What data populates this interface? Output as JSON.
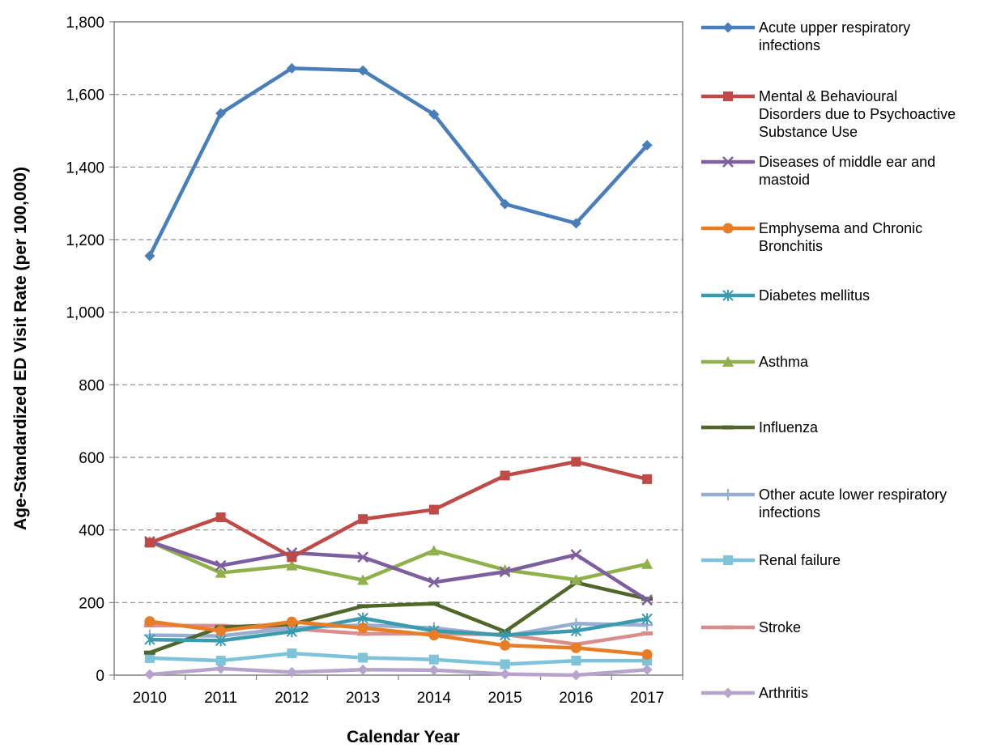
{
  "chart_data": {
    "type": "line",
    "title": "",
    "xlabel": "Calendar Year",
    "ylabel": "Age-Standardized ED Visit Rate (per 100,000)",
    "x": [
      "2010",
      "2011",
      "2012",
      "2013",
      "2014",
      "2015",
      "2016",
      "2017"
    ],
    "ylim": [
      0,
      1800
    ],
    "yticks": [
      "0",
      "200",
      "400",
      "600",
      "800",
      "1,000",
      "1,200",
      "1,400",
      "1,600",
      "1,800"
    ],
    "grid": "horizontal dashed",
    "legend_position": "right",
    "series": [
      {
        "name": "Acute upper respiratory infections",
        "legend_lines": [
          "Acute upper respiratory",
          "infections"
        ],
        "color": "#4A7EBB",
        "marker": "diamond",
        "values": [
          1155,
          1548,
          1672,
          1666,
          1545,
          1298,
          1245,
          1460
        ]
      },
      {
        "name": "Mental & Behavioural Disorders due to Psychoactive Substance Use",
        "legend_lines": [
          "Mental & Behavioural",
          "Disorders due to Psychoactive",
          "Substance Use"
        ],
        "color": "#BE4B48",
        "marker": "square",
        "values": [
          365,
          435,
          325,
          430,
          456,
          550,
          588,
          540
        ]
      },
      {
        "name": "Diseases of middle ear and mastoid",
        "legend_lines": [
          "Diseases of middle ear and",
          "mastoid"
        ],
        "color": "#7D5FA0",
        "marker": "x",
        "values": [
          368,
          302,
          337,
          325,
          256,
          285,
          332,
          207
        ]
      },
      {
        "name": "Emphysema and Chronic Bronchitis",
        "legend_lines": [
          "Emphysema and Chronic",
          "Bronchitis"
        ],
        "color": "#E77E27",
        "marker": "circle",
        "values": [
          148,
          122,
          147,
          130,
          110,
          82,
          75,
          57
        ]
      },
      {
        "name": "Diabetes mellitus",
        "legend_lines": [
          "Diabetes mellitus"
        ],
        "color": "#3A9AAE",
        "marker": "asterisk",
        "values": [
          98,
          95,
          120,
          157,
          122,
          110,
          122,
          155
        ]
      },
      {
        "name": "Asthma",
        "legend_lines": [
          "Asthma"
        ],
        "color": "#8FB04A",
        "marker": "triangle",
        "values": [
          368,
          282,
          302,
          262,
          343,
          290,
          263,
          306
        ]
      },
      {
        "name": "Influenza",
        "legend_lines": [
          "Influenza"
        ],
        "color": "#50662A",
        "marker": "dash",
        "values": [
          62,
          132,
          140,
          190,
          197,
          120,
          255,
          210
        ]
      },
      {
        "name": "Other acute lower respiratory infections",
        "legend_lines": [
          "Other acute lower respiratory",
          "infections"
        ],
        "color": "#97AED0",
        "marker": "plus",
        "values": [
          110,
          108,
          130,
          138,
          130,
          108,
          142,
          138
        ]
      },
      {
        "name": "Renal failure",
        "legend_lines": [
          "Renal failure"
        ],
        "color": "#7FC3DB",
        "marker": "square",
        "values": [
          47,
          40,
          60,
          48,
          43,
          30,
          40,
          40
        ]
      },
      {
        "name": "Stroke",
        "legend_lines": [
          "Stroke"
        ],
        "color": "#DA8E8C",
        "marker": "dash",
        "values": [
          137,
          136,
          128,
          114,
          114,
          112,
          85,
          115
        ]
      },
      {
        "name": "Arthritis",
        "legend_lines": [
          "Arthritis"
        ],
        "color": "#B6A4CC",
        "marker": "diamond",
        "values": [
          2,
          18,
          8,
          15,
          14,
          3,
          0,
          15
        ]
      }
    ]
  }
}
